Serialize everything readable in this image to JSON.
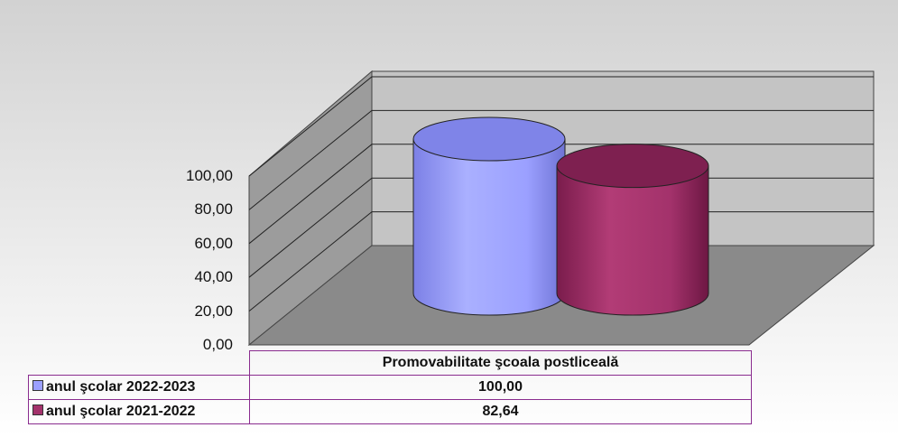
{
  "chart_data": {
    "type": "bar",
    "style": "3d-cylinder",
    "categories": [
      "Promovabilitate şcoala postliceală"
    ],
    "series": [
      {
        "name": "anul şcolar 2022-2023",
        "values": [
          100.0
        ],
        "color": "#9ba0ff",
        "value_label": "100,00"
      },
      {
        "name": "anul şcolar 2021-2022",
        "values": [
          82.64
        ],
        "color": "#a3326b",
        "value_label": "82,64"
      }
    ],
    "ylim": [
      0,
      100
    ],
    "yticks": [
      "0,00",
      "20,00",
      "40,00",
      "60,00",
      "80,00",
      "100,00"
    ],
    "grid": true,
    "legend": "data-table-below",
    "title": "",
    "xlabel": "",
    "ylabel": ""
  },
  "colors": {
    "page_background_top": "#d4d4d4",
    "page_background_bottom": "#ffffff",
    "wall": "#c0c0c0",
    "floor": "#8c8c8c",
    "table_border": "#8a2c8f"
  }
}
